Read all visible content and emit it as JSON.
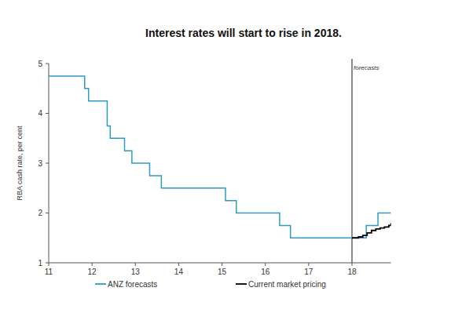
{
  "chart_data": {
    "type": "step",
    "title": "Interest rates will start to rise in 2018.",
    "y_label": "RBA cash rate, per cent",
    "xlim": [
      11,
      18.9
    ],
    "xticks": [
      11,
      12,
      13,
      14,
      15,
      16,
      17,
      18
    ],
    "ylim": [
      1,
      5
    ],
    "yticks": [
      1,
      2,
      3,
      4,
      5
    ],
    "legend": "bottom",
    "grid": false,
    "annotations": [
      {
        "x": 18,
        "text": "forecasts"
      }
    ],
    "series": [
      {
        "name": "ANZ forecasts",
        "color": "#2e9ac4",
        "x": [
          11,
          11.83,
          11.92,
          12.35,
          12.42,
          12.75,
          12.92,
          13.33,
          13.6,
          15.08,
          15.33,
          16.33,
          16.58,
          18.33,
          18.6,
          18.9
        ],
        "values": [
          4.75,
          4.5,
          4.25,
          3.75,
          3.5,
          3.25,
          3.0,
          2.75,
          2.5,
          2.25,
          2.0,
          1.75,
          1.5,
          1.75,
          2.0,
          2.0
        ]
      },
      {
        "name": "Current market pricing",
        "color": "#000000",
        "x": [
          18.0,
          18.15,
          18.25,
          18.35,
          18.45,
          18.55,
          18.65,
          18.75,
          18.85,
          18.9
        ],
        "values": [
          1.5,
          1.52,
          1.55,
          1.6,
          1.65,
          1.68,
          1.7,
          1.72,
          1.75,
          1.8
        ]
      }
    ]
  }
}
